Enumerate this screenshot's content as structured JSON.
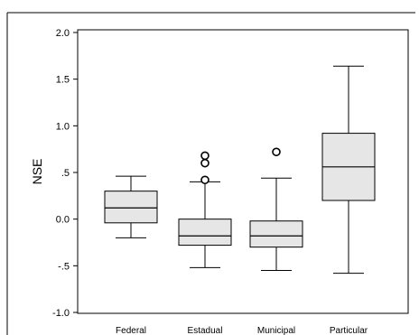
{
  "chart_data": {
    "type": "boxplot",
    "ylabel": "NSE",
    "xlabel": "",
    "ylim": [
      -1.0,
      2.0
    ],
    "yticks": [
      {
        "value": 2.0,
        "label": "2.0"
      },
      {
        "value": 1.5,
        "label": "1.5"
      },
      {
        "value": 1.0,
        "label": "1.0"
      },
      {
        "value": 0.5,
        "label": ".5"
      },
      {
        "value": 0.0,
        "label": "0.0"
      },
      {
        "value": -0.5,
        "label": "-.5"
      },
      {
        "value": -1.0,
        "label": "-1.0"
      }
    ],
    "categories": [
      "Federal",
      "Estadual",
      "Municipal",
      "Particular"
    ],
    "boxes": [
      {
        "category": "Federal",
        "whisker_low": -0.2,
        "q1": -0.04,
        "median": 0.12,
        "q3": 0.3,
        "whisker_high": 0.46,
        "outliers": []
      },
      {
        "category": "Estadual",
        "whisker_low": -0.52,
        "q1": -0.28,
        "median": -0.18,
        "q3": 0.0,
        "whisker_high": 0.4,
        "outliers": [
          0.68,
          0.6,
          0.42
        ]
      },
      {
        "category": "Municipal",
        "whisker_low": -0.55,
        "q1": -0.3,
        "median": -0.18,
        "q3": -0.02,
        "whisker_high": 0.44,
        "outliers": [
          0.72
        ]
      },
      {
        "category": "Particular",
        "whisker_low": -0.58,
        "q1": 0.2,
        "median": 0.56,
        "q3": 0.92,
        "whisker_high": 1.64,
        "outliers": []
      }
    ],
    "grid": false,
    "legend": "none"
  },
  "colors": {
    "box_fill": "#e6e6e6",
    "stroke": "#000000",
    "background": "#ffffff"
  }
}
